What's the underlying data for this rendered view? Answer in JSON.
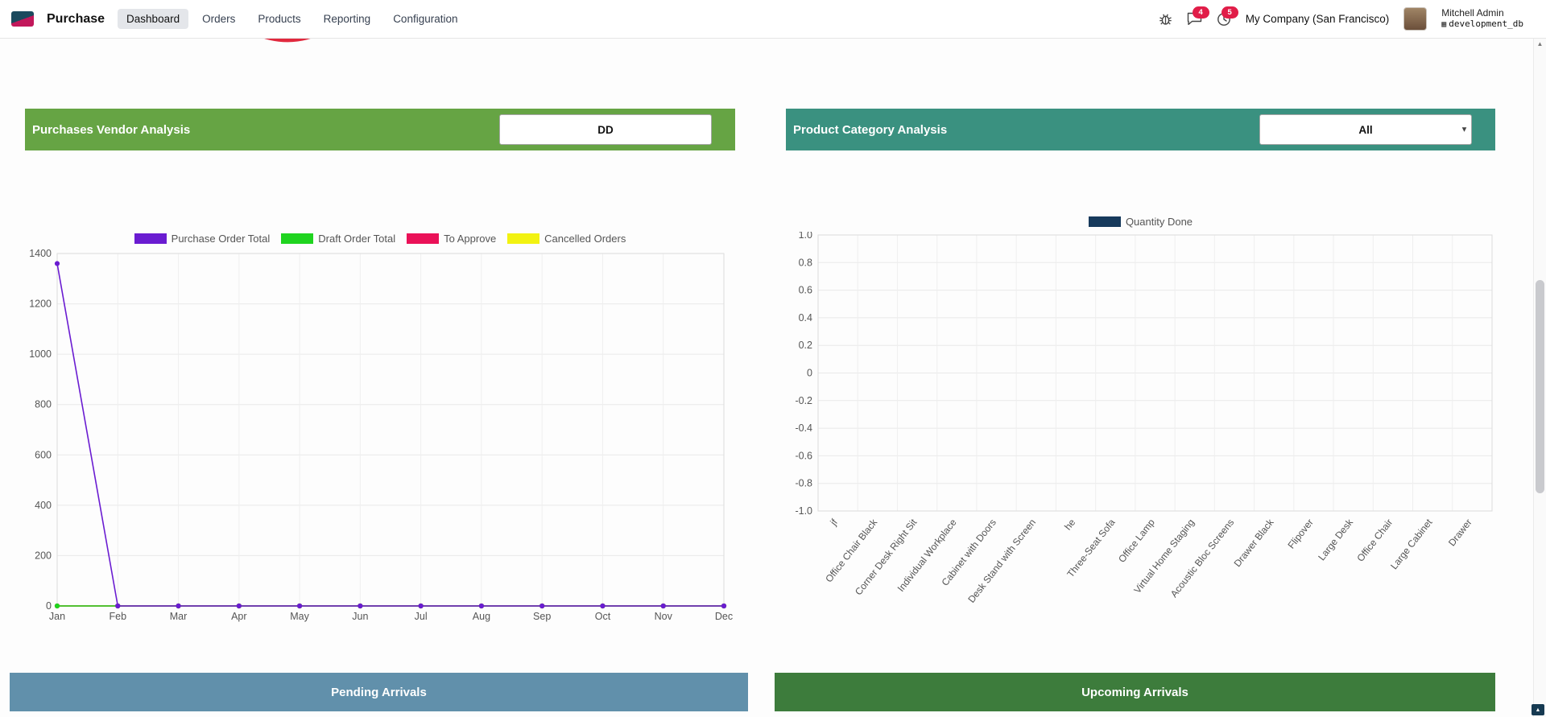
{
  "nav": {
    "app_name": "Purchase",
    "menu": [
      {
        "label": "Dashboard",
        "active": true
      },
      {
        "label": "Orders",
        "active": false
      },
      {
        "label": "Products",
        "active": false
      },
      {
        "label": "Reporting",
        "active": false
      },
      {
        "label": "Configuration",
        "active": false
      }
    ],
    "systray": {
      "messages_badge": "4",
      "activities_badge": "5",
      "company": "My Company (San Francisco)",
      "user_name": "Mitchell Admin",
      "database": "development_db"
    }
  },
  "panels": {
    "vendor": {
      "title": "Purchases Vendor Analysis",
      "filter_value": "DD",
      "header_color": "#66a444"
    },
    "category": {
      "title": "Product Category Analysis",
      "filter_value": "All",
      "header_color": "#3a9180"
    },
    "pending": {
      "title": "Pending Arrivals",
      "header_color": "#6190ab"
    },
    "upcoming": {
      "title": "Upcoming Arrivals",
      "header_color": "#3d7c3c"
    }
  },
  "chart_data": [
    {
      "type": "line",
      "title": "Purchases Vendor Analysis",
      "x": [
        "Jan",
        "Feb",
        "Mar",
        "Apr",
        "May",
        "Jun",
        "Jul",
        "Aug",
        "Sep",
        "Oct",
        "Nov",
        "Dec"
      ],
      "xlabel": "",
      "ylabel": "",
      "ylim": [
        0,
        1400
      ],
      "yticks": [
        0,
        200,
        400,
        600,
        800,
        1000,
        1200,
        1400
      ],
      "grid": true,
      "legend_position": "top",
      "series": [
        {
          "name": "Purchase Order Total",
          "color": "#6a1cd1",
          "values": [
            1360,
            0,
            0,
            0,
            0,
            0,
            0,
            0,
            0,
            0,
            0,
            0
          ]
        },
        {
          "name": "Draft Order Total",
          "color": "#1fd41f",
          "values": [
            0,
            0,
            0,
            0,
            0,
            0,
            0,
            0,
            0,
            0,
            0,
            0
          ]
        },
        {
          "name": "To Approve",
          "color": "#ea1158",
          "values": [
            0,
            0,
            0,
            0,
            0,
            0,
            0,
            0,
            0,
            0,
            0,
            0
          ]
        },
        {
          "name": "Cancelled Orders",
          "color": "#f2f211",
          "values": [
            0,
            0,
            0,
            0,
            0,
            0,
            0,
            0,
            0,
            0,
            0,
            0
          ]
        }
      ]
    },
    {
      "type": "bar",
      "title": "Product Category Analysis",
      "categories": [
        "jf",
        "Office Chair Black",
        "Corner Desk Right Sit",
        "Individual Workplace",
        "Cabinet with Doors",
        "Desk Stand with Screen",
        "he",
        "Three-Seat Sofa",
        "Office Lamp",
        "Virtual Home Staging",
        "Acoustic Bloc Screens",
        "Drawer Black",
        "Flipover",
        "Large Desk",
        "Office Chair",
        "Large Cabinet",
        "Drawer"
      ],
      "xlabel": "",
      "ylabel": "",
      "ylim": [
        -1.0,
        1.0
      ],
      "yticks": [
        1.0,
        0.8,
        0.6,
        0.4,
        0.2,
        0,
        -0.2,
        -0.4,
        -0.6,
        -0.8,
        -1.0
      ],
      "grid": true,
      "legend_position": "top",
      "series": [
        {
          "name": "Quantity Done",
          "color": "#173a5c",
          "values": [
            0,
            0,
            0,
            0,
            0,
            0,
            0,
            0,
            0,
            0,
            0,
            0,
            0,
            0,
            0,
            0,
            0
          ]
        }
      ]
    }
  ]
}
